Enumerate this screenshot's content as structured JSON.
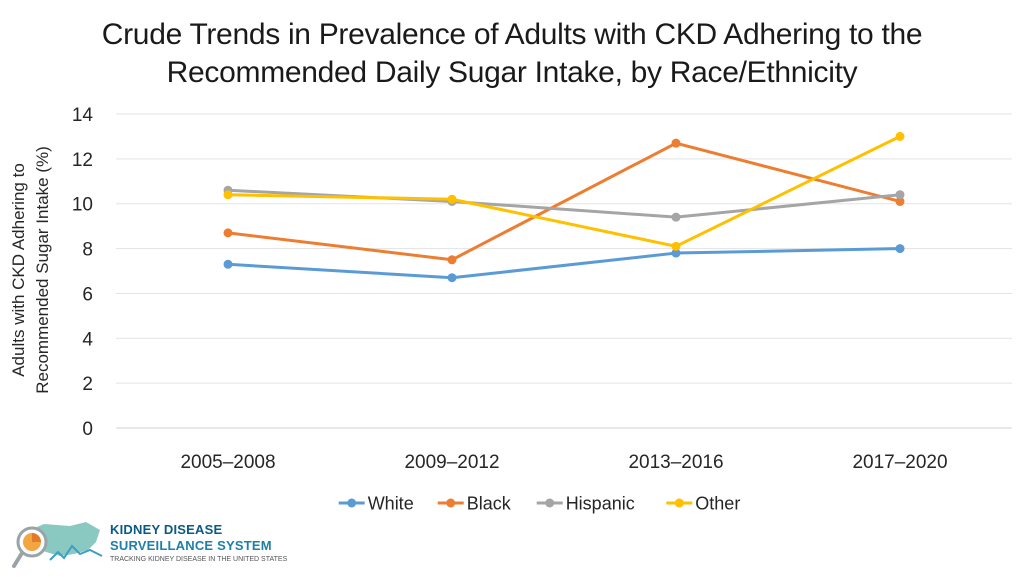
{
  "chart_data": {
    "type": "line",
    "title_line1": "Crude Trends in Prevalence of Adults with CKD Adhering to the",
    "title_line2": "Recommended Daily Sugar Intake, by Race/Ethnicity",
    "ylabel_line1": "Adults with CKD Adhering to",
    "ylabel_line2": "Recommended Sugar Intake (%)",
    "xlabel": "",
    "ylim": [
      0,
      14
    ],
    "yticks": [
      0,
      2,
      4,
      6,
      8,
      10,
      12,
      14
    ],
    "categories": [
      "2005–2008",
      "2009–2012",
      "2013–2016",
      "2017–2020"
    ],
    "grid": true,
    "legend_position": "bottom",
    "series": [
      {
        "name": "White",
        "color": "#5b9bd5",
        "values": [
          7.3,
          6.7,
          7.8,
          8.0
        ]
      },
      {
        "name": "Black",
        "color": "#ed7d31",
        "values": [
          8.7,
          7.5,
          12.7,
          10.1
        ]
      },
      {
        "name": "Hispanic",
        "color": "#a5a5a5",
        "values": [
          10.6,
          10.1,
          9.4,
          10.4
        ]
      },
      {
        "name": "Other",
        "color": "#ffc000",
        "values": [
          10.4,
          10.2,
          8.1,
          13.0
        ]
      }
    ]
  },
  "logo": {
    "title1": "KIDNEY DISEASE",
    "title2": "SURVEILLANCE SYSTEM",
    "tagline": "TRACKING KIDNEY DISEASE IN THE UNITED STATES"
  }
}
